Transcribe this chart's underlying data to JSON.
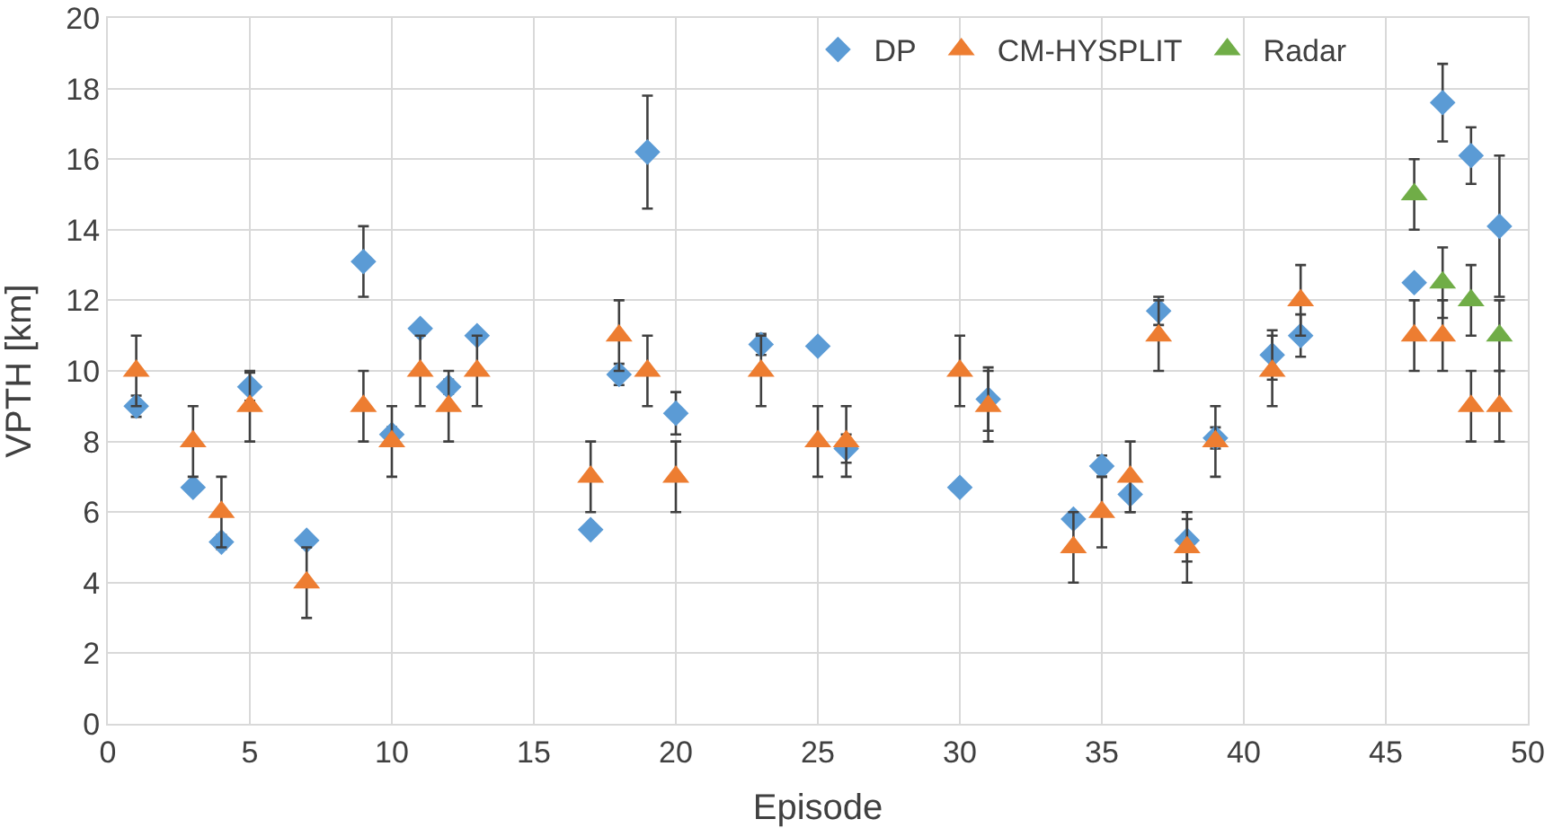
{
  "chart_data": {
    "type": "scatter",
    "xlabel": "Episode",
    "ylabel": "VPTH [km]",
    "xlim": [
      0,
      50
    ],
    "xticks": [
      0,
      5,
      10,
      15,
      20,
      25,
      30,
      35,
      40,
      45,
      50
    ],
    "ylim": [
      0,
      20
    ],
    "yticks": [
      0,
      2,
      4,
      6,
      8,
      10,
      12,
      14,
      16,
      18,
      20
    ],
    "grid": true,
    "legend": "top right",
    "series": [
      {
        "name": "DP",
        "color": "#5b9bd5",
        "marker": "diamond",
        "x": [
          1,
          3,
          4,
          5,
          7,
          9,
          10,
          11,
          12,
          13,
          17,
          18,
          19,
          20,
          23,
          25,
          26,
          30,
          31,
          34,
          35,
          36,
          37,
          38,
          39,
          41,
          42,
          46,
          47,
          48,
          49
        ],
        "values": [
          9.0,
          6.7,
          5.15,
          9.55,
          5.2,
          13.1,
          8.2,
          11.2,
          9.55,
          11.0,
          5.5,
          9.9,
          16.2,
          8.8,
          10.75,
          10.7,
          7.8,
          6.7,
          9.2,
          5.8,
          7.3,
          6.5,
          11.7,
          5.2,
          8.1,
          10.45,
          11.0,
          12.5,
          17.6,
          16.1,
          14.1
        ],
        "errors": [
          0.3,
          null,
          0.2,
          0.4,
          null,
          1.0,
          0.2,
          null,
          0.2,
          null,
          null,
          0.3,
          1.6,
          0.6,
          0.3,
          null,
          0.4,
          null,
          0.9,
          null,
          0.3,
          0.5,
          0.4,
          0.6,
          0.3,
          0.7,
          0.6,
          null,
          1.1,
          0.8,
          2.0
        ]
      },
      {
        "name": "CM-HYSPLIT",
        "color": "#ed7d31",
        "marker": "triangle",
        "x": [
          1,
          3,
          4,
          5,
          7,
          9,
          10,
          11,
          12,
          13,
          17,
          18,
          19,
          20,
          23,
          25,
          26,
          30,
          31,
          34,
          35,
          36,
          37,
          38,
          39,
          41,
          42,
          46,
          47,
          48,
          49
        ],
        "values": [
          10,
          8,
          6,
          9,
          4,
          9,
          8,
          10,
          9,
          10,
          7,
          11,
          10,
          7,
          10,
          8,
          8,
          10,
          9,
          5,
          6,
          7,
          11,
          5,
          8,
          10,
          12,
          11,
          11,
          9,
          9
        ],
        "errors": [
          1,
          1,
          1,
          1,
          1,
          1,
          1,
          1,
          1,
          1,
          1,
          1,
          1,
          1,
          1,
          1,
          1,
          1,
          1,
          1,
          1,
          1,
          1,
          1,
          1,
          1,
          1,
          1,
          1,
          1,
          1
        ]
      },
      {
        "name": "Radar",
        "color": "#70ad47",
        "marker": "triangle",
        "x": [
          46,
          47,
          48,
          49
        ],
        "values": [
          15,
          12.5,
          12,
          11
        ],
        "errors": [
          1,
          1,
          1,
          1
        ]
      }
    ]
  }
}
